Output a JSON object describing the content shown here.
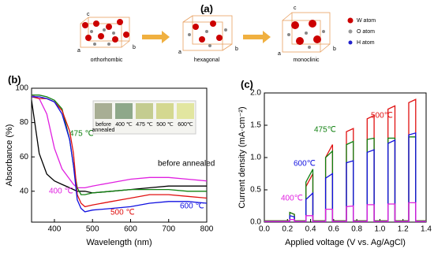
{
  "panel_a": {
    "label": "(a)",
    "phases": [
      "orthorhombic",
      "hexagonal",
      "monoclinic"
    ],
    "lattice_axes": [
      "a",
      "b",
      "c"
    ],
    "legend": [
      "W atom",
      "O atom",
      "H atom"
    ]
  },
  "chart_data": [
    {
      "type": "line",
      "panel_label": "(b)",
      "x_label": "Wavelength (nm)",
      "y_label": "Absorbance (%)",
      "x": [
        340,
        360,
        380,
        400,
        420,
        440,
        450,
        460,
        470,
        480,
        500,
        550,
        600,
        650,
        700,
        750,
        800
      ],
      "xlim": [
        340,
        800
      ],
      "xticks": [
        400,
        500,
        600,
        700,
        800
      ],
      "ylim": [
        22,
        100
      ],
      "yticks": [
        40,
        60,
        80,
        100
      ],
      "series": [
        {
          "name": "before annealed",
          "color": "#000000",
          "values": [
            93,
            62,
            50,
            46,
            44,
            42,
            41,
            40,
            40,
            40,
            39,
            40,
            41,
            42,
            43,
            43,
            43
          ]
        },
        {
          "name": "400 ℃",
          "color": "#e020e0",
          "values": [
            96,
            94,
            85,
            65,
            53,
            47,
            44,
            42,
            42,
            42,
            43,
            45,
            47,
            48,
            48,
            47,
            46
          ]
        },
        {
          "name": "475 ℃",
          "color": "#108010",
          "values": [
            96,
            96,
            95,
            93,
            88,
            70,
            55,
            42,
            38,
            38,
            39,
            40,
            41,
            41,
            41,
            40,
            40
          ]
        },
        {
          "name": "500 ℃",
          "color": "#e01010",
          "values": [
            95,
            94,
            94,
            92,
            87,
            75,
            62,
            38,
            33,
            31,
            32,
            34,
            36,
            38,
            38,
            37,
            36
          ]
        },
        {
          "name": "600 ℃",
          "color": "#1010e0",
          "values": [
            95,
            95,
            94,
            92,
            85,
            70,
            55,
            35,
            30,
            28,
            29,
            30,
            31,
            33,
            34,
            34,
            33
          ]
        }
      ],
      "inset_labels": [
        [
          "before",
          "annealed"
        ],
        [
          "400 ℃"
        ],
        [
          "475 ℃"
        ],
        [
          "500 ℃"
        ],
        [
          "600℃"
        ]
      ]
    },
    {
      "type": "line",
      "panel_label": "(c)",
      "x_label": "Applied voltage (V vs. Ag/AgCl)",
      "y_label": "Current density (mA·cm⁻²)",
      "x": [
        0,
        0.22,
        0.22,
        0.26,
        0.26,
        0.36,
        0.36,
        0.42,
        0.42,
        0.53,
        0.53,
        0.59,
        0.59,
        0.71,
        0.71,
        0.77,
        0.77,
        0.89,
        0.89,
        0.95,
        0.95,
        1.07,
        1.07,
        1.13,
        1.13,
        1.25,
        1.25,
        1.31,
        1.31,
        1.4
      ],
      "xlim": [
        0,
        1.4
      ],
      "xticks": [
        {
          "value": 0,
          "label": "0.0"
        },
        {
          "value": 0.2,
          "label": "0.2"
        },
        {
          "value": 0.4,
          "label": "0.4"
        },
        {
          "value": 0.6,
          "label": "0.6"
        },
        {
          "value": 0.8,
          "label": "0.8"
        },
        {
          "value": 1,
          "label": "1.0"
        },
        {
          "value": 1.2,
          "label": "1.2"
        },
        {
          "value": 1.4,
          "label": "1.4"
        }
      ],
      "ylim": [
        0,
        2
      ],
      "yticks": [
        {
          "value": 0,
          "label": "0.0"
        },
        {
          "value": 0.5,
          "label": "0.5"
        },
        {
          "value": 1,
          "label": "1.0"
        },
        {
          "value": 1.5,
          "label": "1.5"
        },
        {
          "value": 2,
          "label": "2.0"
        }
      ],
      "series": [
        {
          "name": "500℃",
          "color": "#e01010",
          "values": [
            0.02,
            0.02,
            0.15,
            0.12,
            0.02,
            0.02,
            0.55,
            0.75,
            0.02,
            0.02,
            1.0,
            1.2,
            0.02,
            0.02,
            1.4,
            1.45,
            0.02,
            0.02,
            1.6,
            1.65,
            0.02,
            0.02,
            1.75,
            1.8,
            0.02,
            0.02,
            1.85,
            1.9,
            0.02,
            0.02
          ]
        },
        {
          "name": "475℃",
          "color": "#108010",
          "values": [
            0.02,
            0.02,
            0.15,
            0.12,
            0.02,
            0.02,
            0.62,
            0.82,
            0.02,
            0.02,
            1.0,
            1.1,
            0.02,
            0.02,
            1.2,
            1.25,
            0.02,
            0.02,
            1.28,
            1.3,
            0.02,
            0.02,
            1.3,
            1.3,
            0.02,
            0.02,
            1.32,
            1.32,
            0.02,
            0.02
          ]
        },
        {
          "name": "600℃",
          "color": "#1010e0",
          "values": [
            0.01,
            0.01,
            0.1,
            0.08,
            0.01,
            0.01,
            0.35,
            0.45,
            0.01,
            0.01,
            0.68,
            0.75,
            0.01,
            0.01,
            0.92,
            0.95,
            0.01,
            0.01,
            1.08,
            1.12,
            0.01,
            0.01,
            1.22,
            1.27,
            0.01,
            0.01,
            1.35,
            1.38,
            0.01,
            0.01
          ]
        },
        {
          "name": "400℃",
          "color": "#e020e0",
          "values": [
            0.01,
            0.01,
            0.04,
            0.04,
            0.01,
            0.01,
            0.1,
            0.1,
            0.01,
            0.01,
            0.2,
            0.2,
            0.01,
            0.01,
            0.24,
            0.25,
            0.01,
            0.01,
            0.27,
            0.27,
            0.01,
            0.01,
            0.28,
            0.28,
            0.01,
            0.01,
            0.3,
            0.3,
            0.01,
            0.01
          ]
        }
      ]
    }
  ]
}
